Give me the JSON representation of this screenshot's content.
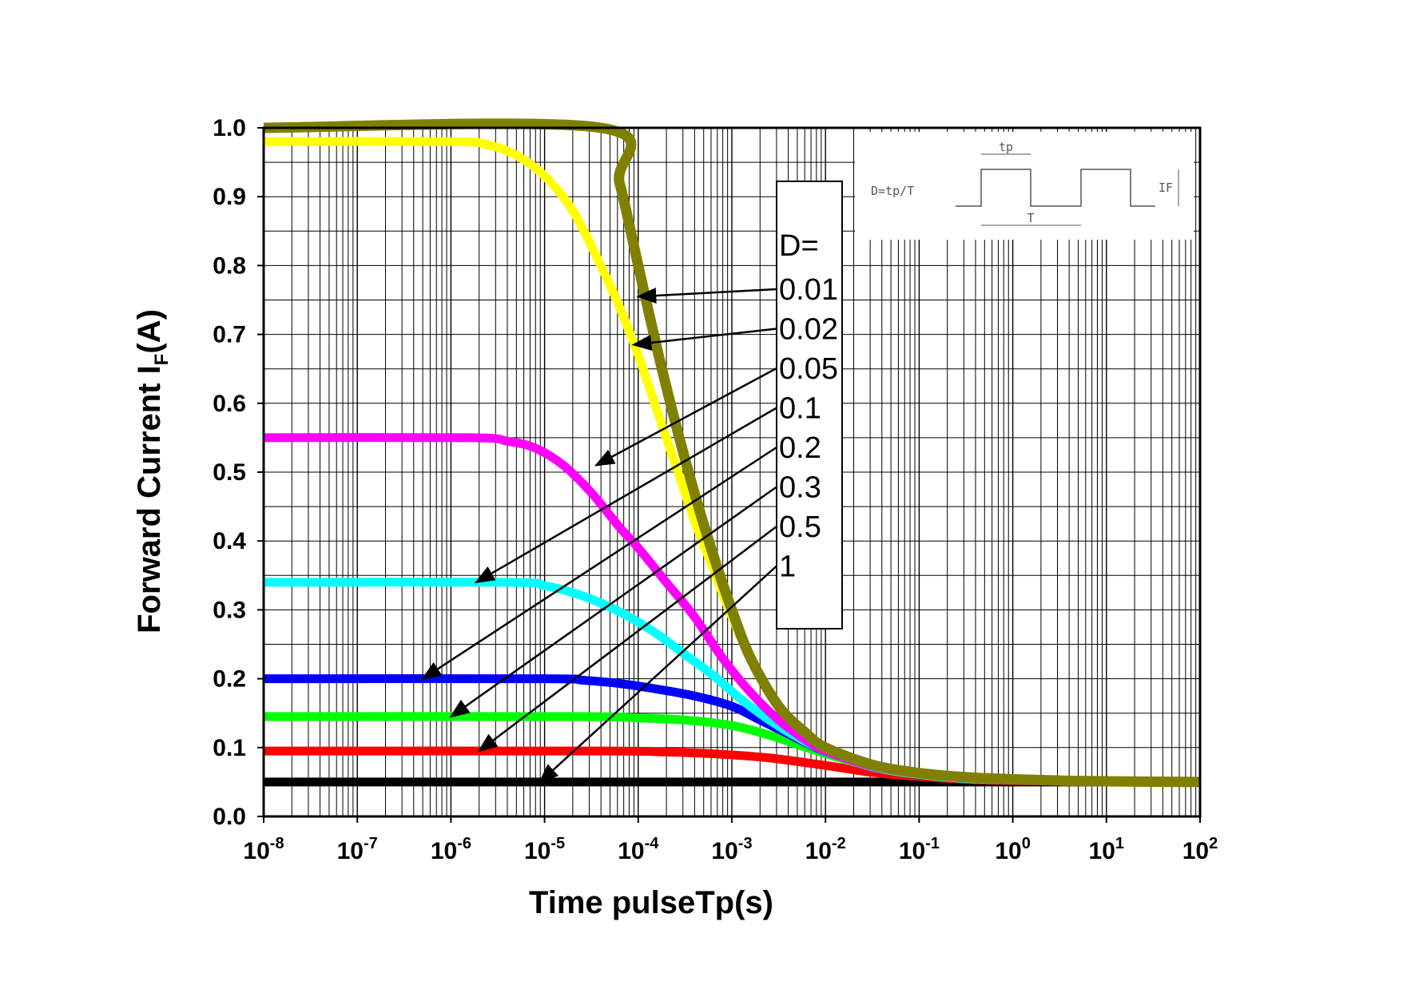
{
  "chart_data": {
    "type": "line",
    "title": "",
    "xlabel": "Time pulseTp(s)",
    "ylabel_main": "Forward Current I",
    "ylabel_sub": "F",
    "ylabel_tail": "(A)",
    "xscale": "log",
    "xlim_exp": [
      -8,
      2
    ],
    "xticks": [
      {
        "base": "10",
        "exp": "-8"
      },
      {
        "base": "10",
        "exp": "-7"
      },
      {
        "base": "10",
        "exp": "-6"
      },
      {
        "base": "10",
        "exp": "-5"
      },
      {
        "base": "10",
        "exp": "-4"
      },
      {
        "base": "10",
        "exp": "-3"
      },
      {
        "base": "10",
        "exp": "-2"
      },
      {
        "base": "10",
        "exp": "-1"
      },
      {
        "base": "10",
        "exp": "0"
      },
      {
        "base": "10",
        "exp": "1"
      },
      {
        "base": "10",
        "exp": "2"
      }
    ],
    "ylim": [
      0,
      1.0
    ],
    "yticks": [
      "0.0",
      "0.1",
      "0.2",
      "0.3",
      "0.4",
      "0.5",
      "0.6",
      "0.7",
      "0.8",
      "0.9",
      "1.0"
    ],
    "grid": true,
    "legend": {
      "title": "D=",
      "position": "upper-middle",
      "entries": [
        "0.01",
        "0.02",
        "0.05",
        "0.1",
        "0.2",
        "0.3",
        "0.5",
        "1"
      ]
    },
    "series": [
      {
        "name": "0.01",
        "color": "#808000",
        "x_exp": [
          -8,
          -4.4,
          -4.2,
          -4.0,
          -3.8,
          -3.6,
          -3.4,
          -3.2,
          -3.0,
          -2.8,
          -2.5,
          -2.2,
          -2.0,
          -1.5,
          -1.0,
          -0.5,
          0,
          0.5,
          1,
          2
        ],
        "values": [
          1.0,
          1.0,
          0.92,
          0.8,
          0.68,
          0.57,
          0.47,
          0.38,
          0.3,
          0.23,
          0.16,
          0.12,
          0.1,
          0.075,
          0.063,
          0.057,
          0.054,
          0.052,
          0.051,
          0.05
        ]
      },
      {
        "name": "0.02",
        "color": "#ffff00",
        "x_exp": [
          -8,
          -6,
          -5.6,
          -5.3,
          -5.0,
          -4.7,
          -4.4,
          -4.2,
          -4.0,
          -3.8,
          -3.6,
          -3.4,
          -3.2,
          -3.0,
          -2.8,
          -2.5,
          -2.2,
          -2.0,
          -1.5,
          -1.0,
          -0.5,
          0,
          0.5,
          1,
          2
        ],
        "values": [
          0.98,
          0.98,
          0.975,
          0.96,
          0.93,
          0.88,
          0.8,
          0.74,
          0.67,
          0.59,
          0.51,
          0.43,
          0.36,
          0.29,
          0.23,
          0.16,
          0.12,
          0.1,
          0.074,
          0.062,
          0.056,
          0.053,
          0.052,
          0.051,
          0.05
        ]
      },
      {
        "name": "0.05",
        "color": "#ff00ff",
        "x_exp": [
          -8,
          -5.8,
          -5.4,
          -5.1,
          -4.8,
          -4.5,
          -4.2,
          -4.0,
          -3.7,
          -3.4,
          -3.1,
          -2.8,
          -2.5,
          -2.2,
          -2.0,
          -1.5,
          -1.0,
          -0.5,
          0,
          1,
          2
        ],
        "values": [
          0.55,
          0.55,
          0.545,
          0.535,
          0.51,
          0.47,
          0.42,
          0.39,
          0.34,
          0.29,
          0.23,
          0.18,
          0.14,
          0.11,
          0.095,
          0.073,
          0.062,
          0.056,
          0.053,
          0.051,
          0.05
        ]
      },
      {
        "name": "0.1",
        "color": "#00ffff",
        "x_exp": [
          -8,
          -5.4,
          -5.0,
          -4.7,
          -4.4,
          -4.1,
          -3.8,
          -3.5,
          -3.2,
          -2.9,
          -2.6,
          -2.3,
          -2.0,
          -1.5,
          -1.0,
          -0.5,
          0,
          1,
          2
        ],
        "values": [
          0.34,
          0.34,
          0.335,
          0.325,
          0.31,
          0.29,
          0.265,
          0.235,
          0.205,
          0.17,
          0.14,
          0.115,
          0.095,
          0.072,
          0.061,
          0.055,
          0.053,
          0.051,
          0.05
        ]
      },
      {
        "name": "0.2",
        "color": "#0000ff",
        "x_exp": [
          -8,
          -5.0,
          -4.6,
          -4.2,
          -3.8,
          -3.4,
          -3.0,
          -2.7,
          -2.4,
          -2.1,
          -1.8,
          -1.5,
          -1.0,
          -0.5,
          0,
          1,
          2
        ],
        "values": [
          0.2,
          0.2,
          0.198,
          0.193,
          0.185,
          0.175,
          0.16,
          0.14,
          0.12,
          0.1,
          0.085,
          0.072,
          0.061,
          0.055,
          0.053,
          0.051,
          0.05
        ]
      },
      {
        "name": "0.3",
        "color": "#00ff00",
        "x_exp": [
          -8,
          -4.6,
          -4.0,
          -3.5,
          -3.0,
          -2.6,
          -2.2,
          -1.8,
          -1.4,
          -1.0,
          -0.5,
          0,
          1,
          2
        ],
        "values": [
          0.145,
          0.145,
          0.143,
          0.14,
          0.132,
          0.118,
          0.1,
          0.083,
          0.07,
          0.062,
          0.056,
          0.053,
          0.051,
          0.05
        ]
      },
      {
        "name": "0.5",
        "color": "#ff0000",
        "x_exp": [
          -8,
          -4.4,
          -3.8,
          -3.2,
          -2.6,
          -2.0,
          -1.5,
          -1.0,
          -0.5,
          0,
          1,
          2
        ],
        "values": [
          0.095,
          0.095,
          0.094,
          0.091,
          0.085,
          0.074,
          0.064,
          0.058,
          0.054,
          0.052,
          0.051,
          0.05
        ]
      },
      {
        "name": "1",
        "color": "#000000",
        "x_exp": [
          -8,
          2
        ],
        "values": [
          0.05,
          0.05
        ]
      }
    ],
    "annotations": {
      "inset": {
        "formula": "D=tp/T",
        "pulse_width_label": "tp",
        "period_label": "T",
        "amplitude_label": "IF"
      },
      "arrows": [
        {
          "series": "0.01",
          "target_x_exp": -4.0,
          "target_y": 0.755
        },
        {
          "series": "0.02",
          "target_x_exp": -4.05,
          "target_y": 0.685
        },
        {
          "series": "0.05",
          "target_x_exp": -4.45,
          "target_y": 0.51
        },
        {
          "series": "0.1",
          "target_x_exp": -5.73,
          "target_y": 0.34
        },
        {
          "series": "0.2",
          "target_x_exp": -6.3,
          "target_y": 0.2
        },
        {
          "series": "0.3",
          "target_x_exp": -6.0,
          "target_y": 0.145
        },
        {
          "series": "0.5",
          "target_x_exp": -5.7,
          "target_y": 0.095
        },
        {
          "series": "1",
          "target_x_exp": -5.05,
          "target_y": 0.05
        }
      ]
    }
  }
}
